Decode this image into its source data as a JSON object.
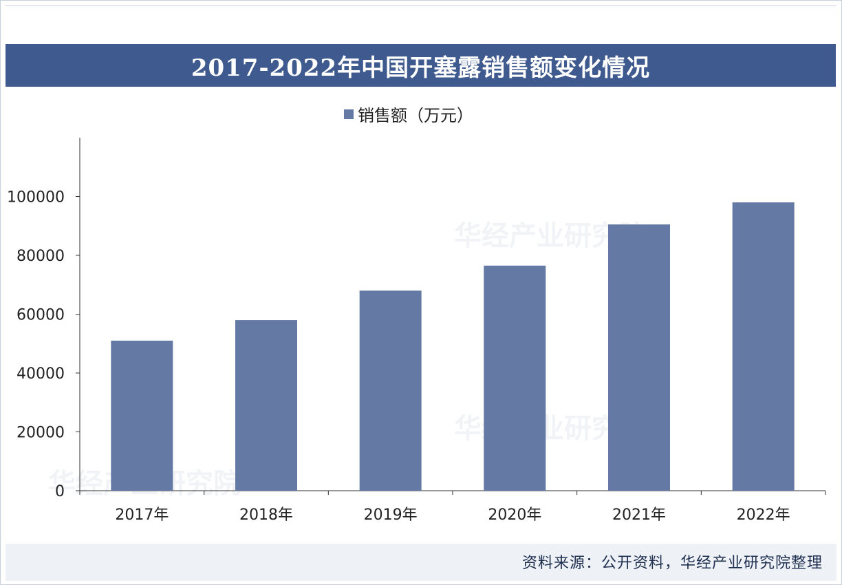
{
  "colors": {
    "title_bg": "#3f5a8e",
    "bar": "#6479a4",
    "axis": "#333333",
    "source_bg": "#eef1f6"
  },
  "chart_data": {
    "type": "bar",
    "title": "2017-2022年中国开塞露销售额变化情况",
    "categories": [
      "2017年",
      "2018年",
      "2019年",
      "2020年",
      "2021年",
      "2022年"
    ],
    "series": [
      {
        "name": "销售额（万元）",
        "values": [
          51000,
          58000,
          68000,
          76500,
          90500,
          98000
        ]
      }
    ],
    "y_ticks": [
      "0",
      "20000",
      "40000",
      "60000",
      "80000",
      "100000"
    ],
    "ylim": [
      0,
      120000
    ],
    "legend_position": "top-center",
    "grid": false
  },
  "source": "资料来源：公开资料，华经产业研究院整理",
  "watermark": "华经产业研究院"
}
